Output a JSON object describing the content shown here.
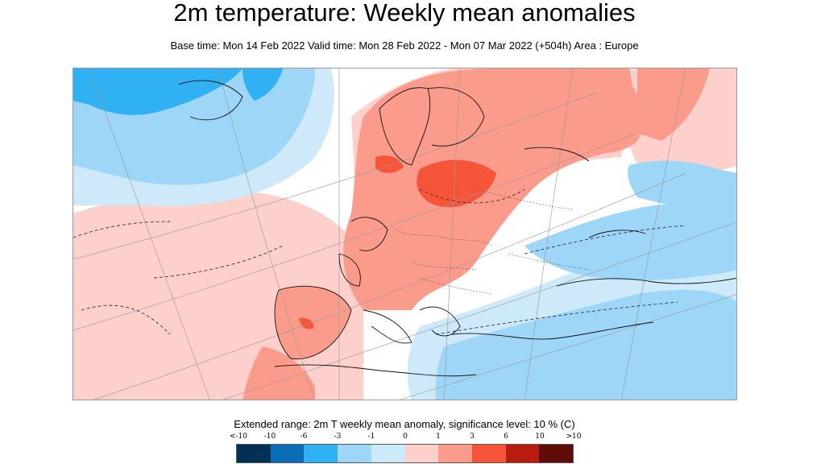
{
  "title": "2m temperature: Weekly mean anomalies",
  "subtitle": "Base time: Mon 14 Feb 2022 Valid time: Mon 28 Feb 2022 - Mon 07 Mar 2022 (+504h) Area : Europe",
  "legend": {
    "title": "Extended range: 2m T weekly mean anomaly, significance level: 10 % (C)",
    "ticks": [
      "<-10",
      "-10",
      "-6",
      "-3",
      "-1",
      "0",
      "1",
      "3",
      "6",
      "10",
      ">10"
    ],
    "colors": [
      "#003154",
      "#0a6eb6",
      "#2fb1f4",
      "#9ed6f8",
      "#cde9fa",
      "#ffffff",
      "#fdd0cb",
      "#fb9b8c",
      "#f7553a",
      "#b81c10",
      "#5e0d0a"
    ]
  },
  "map": {
    "region": "Europe",
    "palette": {
      "neg_strong": "#2fb1f4",
      "neg_mid": "#9ed6f8",
      "neg_weak": "#cde9fa",
      "pos_weak": "#fdd0cb",
      "pos_mid": "#fb9b8c",
      "pos_strong": "#f7553a",
      "pos_very": "#b81c10"
    }
  }
}
